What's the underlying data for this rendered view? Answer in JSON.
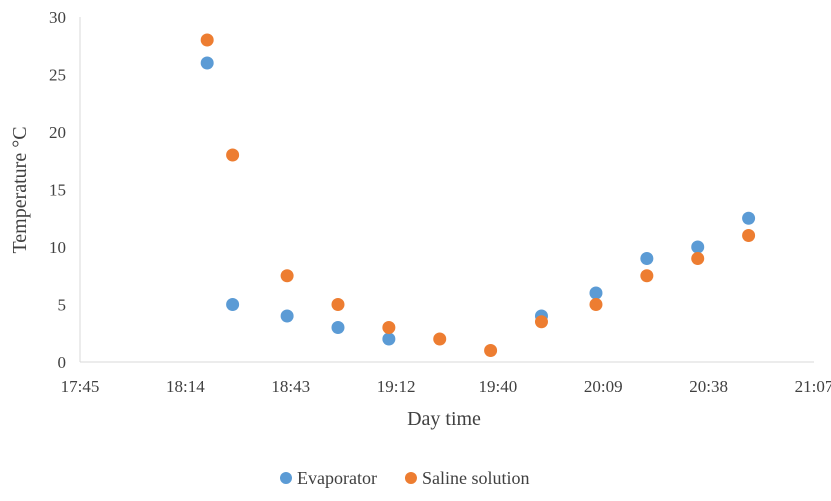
{
  "chart_data": {
    "type": "scatter",
    "title": "",
    "xlabel": "Day time",
    "ylabel": "Temperature °C",
    "x_ticks": [
      "17:45",
      "18:14",
      "18:43",
      "19:12",
      "19:40",
      "20:09",
      "20:38",
      "21:07"
    ],
    "y_ticks": [
      "0",
      "5",
      "10",
      "15",
      "20",
      "25",
      "30"
    ],
    "xlim": [
      "17:45",
      "21:07"
    ],
    "ylim": [
      0,
      30
    ],
    "grid": false,
    "legend_position": "bottom",
    "series": [
      {
        "name": "Evaporator",
        "color": "#5B9BD5",
        "points": [
          {
            "x": "18:20",
            "y": 26
          },
          {
            "x": "18:27",
            "y": 5
          },
          {
            "x": "18:42",
            "y": 4
          },
          {
            "x": "18:56",
            "y": 3
          },
          {
            "x": "19:10",
            "y": 2
          },
          {
            "x": "19:52",
            "y": 4
          },
          {
            "x": "20:07",
            "y": 6
          },
          {
            "x": "20:21",
            "y": 9
          },
          {
            "x": "20:35",
            "y": 10
          },
          {
            "x": "20:49",
            "y": 12.5
          }
        ]
      },
      {
        "name": "Saline solution",
        "color": "#ED7D31",
        "points": [
          {
            "x": "18:20",
            "y": 28
          },
          {
            "x": "18:27",
            "y": 18
          },
          {
            "x": "18:42",
            "y": 7.5
          },
          {
            "x": "18:56",
            "y": 5
          },
          {
            "x": "19:10",
            "y": 3
          },
          {
            "x": "19:24",
            "y": 2
          },
          {
            "x": "19:38",
            "y": 1
          },
          {
            "x": "19:52",
            "y": 3.5
          },
          {
            "x": "20:07",
            "y": 5
          },
          {
            "x": "20:21",
            "y": 7.5
          },
          {
            "x": "20:35",
            "y": 9
          },
          {
            "x": "20:49",
            "y": 11
          }
        ]
      }
    ]
  },
  "colors": {
    "axis": "#D9D9D9",
    "text": "#404040"
  }
}
